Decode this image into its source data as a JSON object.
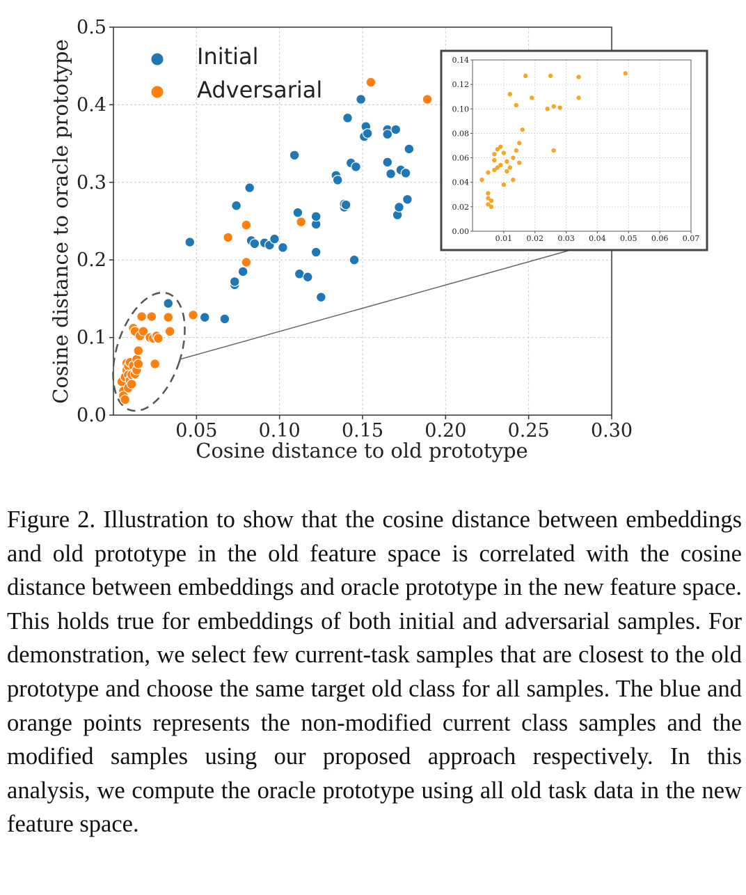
{
  "chart_data": {
    "type": "scatter",
    "xlabel": "Cosine distance to old prototype",
    "ylabel": "Cosine distance to oracle prototype",
    "xlim": [
      0.0,
      0.3
    ],
    "ylim": [
      0.0,
      0.5
    ],
    "xticks": [
      "0.05",
      "0.10",
      "0.15",
      "0.20",
      "0.25",
      "0.30"
    ],
    "yticks": [
      "0.0",
      "0.1",
      "0.2",
      "0.3",
      "0.4",
      "0.5"
    ],
    "grid": true,
    "legend": "top-left",
    "series": [
      {
        "name": "Initial",
        "color": "#1f77b4",
        "points": [
          [
            0.033,
            0.144
          ],
          [
            0.046,
            0.223
          ],
          [
            0.055,
            0.126
          ],
          [
            0.067,
            0.124
          ],
          [
            0.073,
            0.168
          ],
          [
            0.073,
            0.172
          ],
          [
            0.074,
            0.27
          ],
          [
            0.078,
            0.185
          ],
          [
            0.082,
            0.293
          ],
          [
            0.083,
            0.225
          ],
          [
            0.085,
            0.221
          ],
          [
            0.091,
            0.222
          ],
          [
            0.094,
            0.219
          ],
          [
            0.097,
            0.227
          ],
          [
            0.102,
            0.216
          ],
          [
            0.109,
            0.335
          ],
          [
            0.111,
            0.261
          ],
          [
            0.112,
            0.182
          ],
          [
            0.117,
            0.178
          ],
          [
            0.122,
            0.246
          ],
          [
            0.122,
            0.256
          ],
          [
            0.122,
            0.21
          ],
          [
            0.125,
            0.152
          ],
          [
            0.134,
            0.309
          ],
          [
            0.135,
            0.303
          ],
          [
            0.139,
            0.268
          ],
          [
            0.139,
            0.272
          ],
          [
            0.14,
            0.271
          ],
          [
            0.141,
            0.383
          ],
          [
            0.143,
            0.325
          ],
          [
            0.145,
            0.2
          ],
          [
            0.146,
            0.32
          ],
          [
            0.149,
            0.407
          ],
          [
            0.151,
            0.359
          ],
          [
            0.152,
            0.372
          ],
          [
            0.153,
            0.363
          ],
          [
            0.165,
            0.368
          ],
          [
            0.165,
            0.362
          ],
          [
            0.165,
            0.326
          ],
          [
            0.167,
            0.311
          ],
          [
            0.17,
            0.368
          ],
          [
            0.171,
            0.258
          ],
          [
            0.172,
            0.268
          ],
          [
            0.173,
            0.316
          ],
          [
            0.176,
            0.312
          ],
          [
            0.177,
            0.278
          ],
          [
            0.178,
            0.343
          ]
        ]
      },
      {
        "name": "Adversarial",
        "color": "#ff7f0e",
        "points": [
          [
            0.005,
            0.043
          ],
          [
            0.006,
            0.031
          ],
          [
            0.006,
            0.025
          ],
          [
            0.007,
            0.049
          ],
          [
            0.007,
            0.02
          ],
          [
            0.008,
            0.067
          ],
          [
            0.008,
            0.058
          ],
          [
            0.009,
            0.063
          ],
          [
            0.009,
            0.052
          ],
          [
            0.009,
            0.035
          ],
          [
            0.01,
            0.068
          ],
          [
            0.01,
            0.045
          ],
          [
            0.011,
            0.052
          ],
          [
            0.011,
            0.04
          ],
          [
            0.012,
            0.064
          ],
          [
            0.012,
            0.112
          ],
          [
            0.013,
            0.053
          ],
          [
            0.013,
            0.108
          ],
          [
            0.014,
            0.058
          ],
          [
            0.014,
            0.072
          ],
          [
            0.015,
            0.066
          ],
          [
            0.015,
            0.083
          ],
          [
            0.016,
            0.102
          ],
          [
            0.017,
            0.127
          ],
          [
            0.018,
            0.108
          ],
          [
            0.022,
            0.1
          ],
          [
            0.023,
            0.127
          ],
          [
            0.024,
            0.099
          ],
          [
            0.025,
            0.066
          ],
          [
            0.026,
            0.102
          ],
          [
            0.027,
            0.099
          ],
          [
            0.033,
            0.126
          ],
          [
            0.034,
            0.108
          ],
          [
            0.048,
            0.129
          ],
          [
            0.069,
            0.229
          ],
          [
            0.08,
            0.245
          ],
          [
            0.08,
            0.197
          ],
          [
            0.113,
            0.249
          ],
          [
            0.155,
            0.429
          ],
          [
            0.189,
            0.407
          ]
        ]
      }
    ],
    "inset": {
      "type": "scatter",
      "xlim": [
        0.0,
        0.07
      ],
      "ylim": [
        0.0,
        0.14
      ],
      "xticks": [
        "0.01",
        "0.02",
        "0.03",
        "0.04",
        "0.05",
        "0.06",
        "0.07"
      ],
      "yticks": [
        "0.00",
        "0.02",
        "0.04",
        "0.06",
        "0.08",
        "0.10",
        "0.12",
        "0.14"
      ],
      "grid": true,
      "color": "#f5a623",
      "points": [
        [
          0.003,
          0.042
        ],
        [
          0.005,
          0.048
        ],
        [
          0.005,
          0.031
        ],
        [
          0.005,
          0.027
        ],
        [
          0.005,
          0.022
        ],
        [
          0.006,
          0.025
        ],
        [
          0.006,
          0.02
        ],
        [
          0.007,
          0.063
        ],
        [
          0.007,
          0.058
        ],
        [
          0.007,
          0.05
        ],
        [
          0.008,
          0.067
        ],
        [
          0.008,
          0.052
        ],
        [
          0.009,
          0.069
        ],
        [
          0.009,
          0.054
        ],
        [
          0.01,
          0.064
        ],
        [
          0.01,
          0.038
        ],
        [
          0.011,
          0.057
        ],
        [
          0.011,
          0.049
        ],
        [
          0.012,
          0.112
        ],
        [
          0.012,
          0.052
        ],
        [
          0.013,
          0.06
        ],
        [
          0.013,
          0.042
        ],
        [
          0.014,
          0.066
        ],
        [
          0.014,
          0.103
        ],
        [
          0.015,
          0.056
        ],
        [
          0.015,
          0.072
        ],
        [
          0.016,
          0.083
        ],
        [
          0.017,
          0.127
        ],
        [
          0.019,
          0.109
        ],
        [
          0.024,
          0.1
        ],
        [
          0.025,
          0.127
        ],
        [
          0.026,
          0.066
        ],
        [
          0.026,
          0.102
        ],
        [
          0.028,
          0.101
        ],
        [
          0.034,
          0.126
        ],
        [
          0.034,
          0.109
        ],
        [
          0.049,
          0.129
        ]
      ]
    }
  },
  "caption": "Figure 2. Illustration to show that the cosine distance between embeddings and old prototype in the old feature space is correlated with the cosine distance between embeddings and oracle prototype in the new feature space. This holds true for embeddings of both initial and adversarial samples. For demonstration, we select few current-task samples that are closest to the old prototype and choose the same target old class for all samples. The blue and orange points represents the non-modified current class samples and the modified samples using our proposed approach respectively. In this analysis, we compute the oracle prototype using all old task data in the new feature space."
}
